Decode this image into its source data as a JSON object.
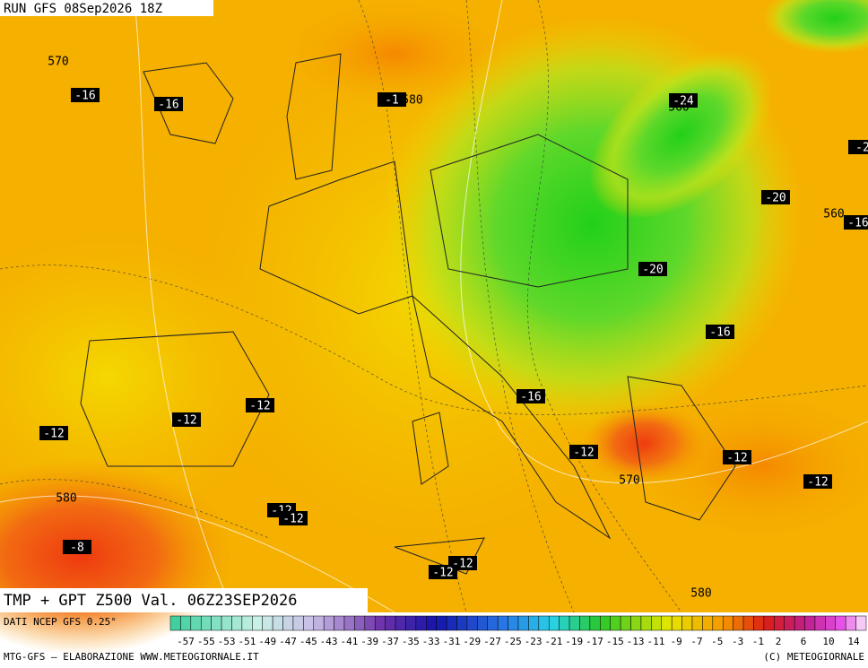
{
  "header": {
    "run": "RUN GFS 08Sep2026 18Z"
  },
  "map": {
    "title": "TMP + GPT Z500 Val. 06Z23SEP2026",
    "labels": [
      "570",
      "-16",
      "-16",
      "-1",
      "580",
      "-24",
      "560",
      "-2",
      "-20",
      "560",
      "-16",
      "-20",
      "-16",
      "-16",
      "-12",
      "-12",
      "-12",
      "-12",
      "-12",
      "-12",
      "570",
      "580",
      "-12",
      "-12",
      "-8",
      "-12",
      "-12",
      "580"
    ]
  },
  "legend": {
    "source": "DATI NCEP GFS 0.25°",
    "scale_labels": [
      -57,
      -55,
      -53,
      -51,
      -49,
      -47,
      -45,
      -43,
      -41,
      -39,
      -37,
      -35,
      -33,
      -31,
      -29,
      -27,
      -25,
      -23,
      -21,
      -19,
      -17,
      -15,
      -13,
      -11,
      -9,
      -7,
      -5,
      -3,
      -1,
      2,
      6,
      10,
      14
    ]
  },
  "footer": {
    "left": "MTG-GFS — ELABORAZIONE WWW.METEOGIORNALE.IT",
    "right": "(C) METEOGIORNALE"
  }
}
